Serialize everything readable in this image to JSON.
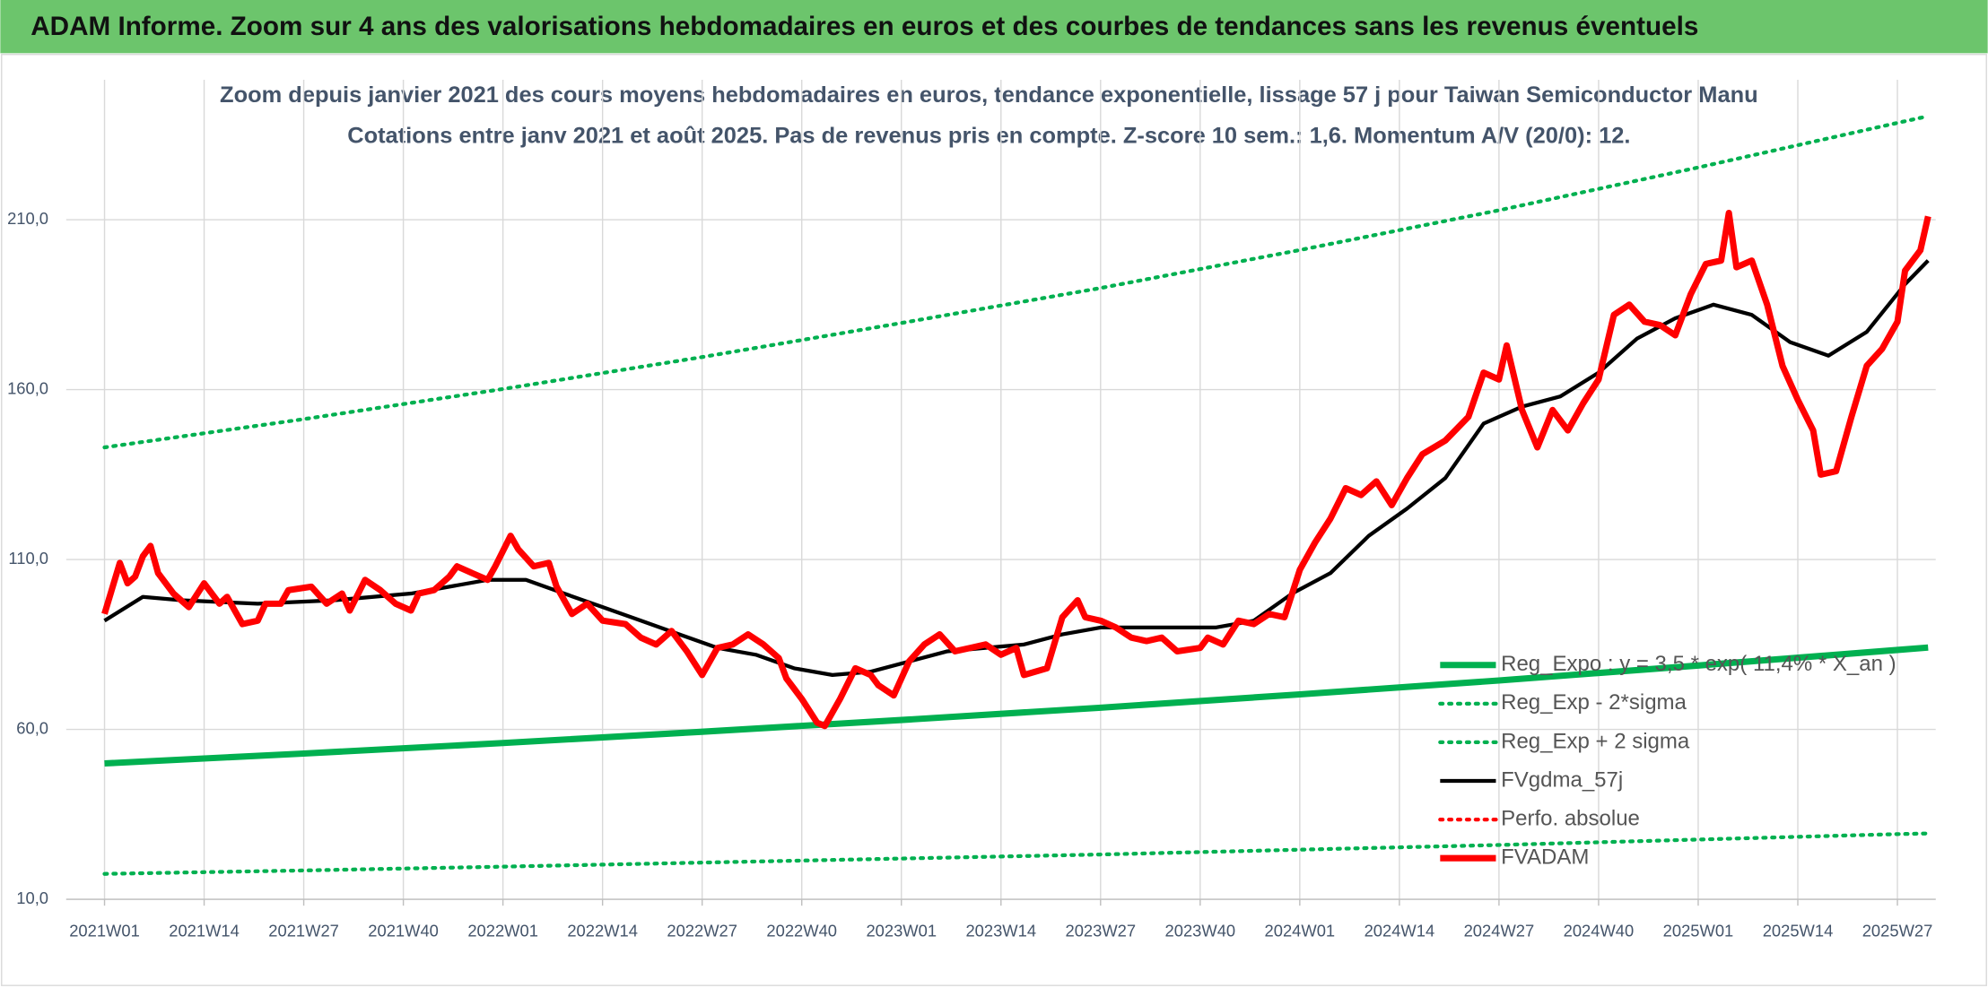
{
  "header": {
    "title": "ADAM Informe. Zoom sur 4 ans des valorisations hebdomadaires en euros et des courbes de tendances sans les revenus éventuels"
  },
  "chart_data": {
    "type": "line",
    "title": "Zoom depuis janvier 2021 des cours moyens hebdomadaires en euros, tendance exponentielle, lissage 57 j pour Taiwan Semiconductor Manu",
    "subtitle": "Cotations entre janv 2021 et août 2025. Pas de revenus pris en compte. Z-score 10 sem.: 1,6. Momentum A/V (20/0): 12.",
    "xlim": [
      -5,
      239
    ],
    "xticks": [
      {
        "value": 0,
        "label": "2021W01"
      },
      {
        "value": 13,
        "label": "2021W14"
      },
      {
        "value": 26,
        "label": "2021W27"
      },
      {
        "value": 39,
        "label": "2021W40"
      },
      {
        "value": 52,
        "label": "2022W01"
      },
      {
        "value": 65,
        "label": "2022W14"
      },
      {
        "value": 78,
        "label": "2022W27"
      },
      {
        "value": 91,
        "label": "2022W40"
      },
      {
        "value": 104,
        "label": "2023W01"
      },
      {
        "value": 117,
        "label": "2023W14"
      },
      {
        "value": 130,
        "label": "2023W27"
      },
      {
        "value": 143,
        "label": "2023W40"
      },
      {
        "value": 156,
        "label": "2024W01"
      },
      {
        "value": 169,
        "label": "2024W14"
      },
      {
        "value": 182,
        "label": "2024W27"
      },
      {
        "value": 195,
        "label": "2024W40"
      },
      {
        "value": 208,
        "label": "2025W01"
      },
      {
        "value": 221,
        "label": "2025W14"
      },
      {
        "value": 234,
        "label": "2025W27"
      }
    ],
    "ylim": [
      10,
      240
    ],
    "yticks": [
      {
        "value": 10,
        "label": "10,0"
      },
      {
        "value": 60,
        "label": "60,0"
      },
      {
        "value": 110,
        "label": "110,0"
      },
      {
        "value": 160,
        "label": "160,0"
      },
      {
        "value": 210,
        "label": "210,0"
      }
    ],
    "grid": true,
    "legend": "right",
    "series": [
      {
        "name": "Reg_Expo : y = 3,5 * exp( 11,4% * X_an )",
        "color": "#00b050",
        "line_style": "solid",
        "line_weight": "thick",
        "x": [
          0,
          26,
          52,
          78,
          104,
          130,
          156,
          182,
          208,
          234,
          238
        ],
        "values": [
          50,
          52.9,
          56,
          59.3,
          62.8,
          66.4,
          70.3,
          74.4,
          78.8,
          83.4,
          84.1
        ]
      },
      {
        "name": "Reg_Exp - 2*sigma",
        "color": "#00b050",
        "line_style": "dotted",
        "line_weight": "medium",
        "x": [
          0,
          26,
          52,
          78,
          104,
          130,
          156,
          182,
          208,
          234,
          238
        ],
        "values": [
          17.5,
          18.5,
          19.6,
          20.8,
          22.0,
          23.2,
          24.6,
          26.0,
          27.6,
          29.2,
          29.4
        ]
      },
      {
        "name": "Reg_Exp + 2 sigma",
        "color": "#00b050",
        "line_style": "dotted",
        "line_weight": "medium",
        "x": [
          0,
          26,
          52,
          78,
          104,
          130,
          156,
          182,
          208,
          234,
          238
        ],
        "values": [
          143,
          151.3,
          160.2,
          169.6,
          179.6,
          189.9,
          201.1,
          212.8,
          225.4,
          238.5,
          240.5
        ]
      },
      {
        "name": "FVgdma_57j",
        "color": "#000000",
        "line_style": "solid",
        "line_weight": "medium",
        "x": [
          0,
          5,
          10,
          20,
          30,
          40,
          50,
          55,
          60,
          65,
          70,
          75,
          80,
          85,
          90,
          95,
          100,
          105,
          110,
          115,
          120,
          125,
          130,
          135,
          140,
          145,
          150,
          155,
          160,
          165,
          170,
          175,
          180,
          185,
          190,
          195,
          200,
          205,
          210,
          215,
          220,
          225,
          230,
          235,
          238
        ],
        "values": [
          92,
          99,
          98,
          97,
          98,
          100,
          104,
          104,
          100,
          96,
          92,
          88,
          84,
          82,
          78,
          76,
          77,
          80,
          83,
          84,
          85,
          88,
          90,
          90,
          90,
          90,
          92,
          100,
          106,
          117,
          125,
          134,
          150,
          155,
          158,
          165,
          175,
          181,
          185,
          182,
          174,
          170,
          177,
          191,
          198
        ]
      },
      {
        "name": "Perfo. absolue",
        "color": "#ff0000",
        "line_style": "dotted",
        "line_weight": "medium",
        "x": [],
        "values": []
      },
      {
        "name": "FVADAM",
        "color": "#ff0000",
        "line_style": "solid",
        "line_weight": "thick",
        "x": [
          0,
          2,
          3,
          4,
          5,
          6,
          7,
          9,
          11,
          13,
          15,
          16,
          18,
          20,
          21,
          23,
          24,
          27,
          29,
          31,
          32,
          34,
          36,
          38,
          40,
          41,
          43,
          45,
          46,
          48,
          50,
          51,
          53,
          54,
          56,
          58,
          59,
          61,
          63,
          65,
          68,
          70,
          72,
          74,
          76,
          78,
          80,
          82,
          84,
          86,
          88,
          89,
          91,
          93,
          94,
          96,
          98,
          100,
          101,
          103,
          105,
          107,
          109,
          111,
          113,
          115,
          117,
          119,
          120,
          123,
          125,
          127,
          128,
          130,
          132,
          134,
          136,
          138,
          140,
          143,
          144,
          146,
          148,
          150,
          152,
          154,
          156,
          158,
          160,
          162,
          164,
          166,
          168,
          170,
          172,
          175,
          178,
          180,
          182,
          183,
          185,
          187,
          189,
          191,
          193,
          195,
          197,
          199,
          201,
          203,
          205,
          207,
          209,
          211,
          212,
          213,
          215,
          217,
          219,
          221,
          223,
          224,
          226,
          228,
          230,
          232,
          234,
          235,
          237,
          238
        ],
        "values": [
          94,
          109,
          103,
          105,
          111,
          114,
          106,
          100,
          96,
          103,
          97,
          99,
          91,
          92,
          97,
          97,
          101,
          102,
          97,
          100,
          95,
          104,
          101,
          97,
          95,
          100,
          101,
          105,
          108,
          106,
          104,
          108,
          117,
          113,
          108,
          109,
          102,
          94,
          97,
          92,
          91,
          87,
          85,
          89,
          83,
          76,
          84,
          85,
          88,
          85,
          81,
          75,
          69,
          62,
          61,
          69,
          78,
          76,
          73,
          70,
          80,
          85,
          88,
          83,
          84,
          85,
          82,
          84,
          76,
          78,
          93,
          98,
          93,
          92,
          90,
          87,
          86,
          87,
          83,
          84,
          87,
          85,
          92,
          91,
          94,
          93,
          107,
          115,
          122,
          131,
          129,
          133,
          126,
          134,
          141,
          145,
          152,
          165,
          163,
          173,
          154,
          143,
          154,
          148,
          156,
          163,
          182,
          185,
          180,
          179,
          176,
          188,
          197,
          198,
          212,
          196,
          198,
          185,
          167,
          157,
          148,
          135,
          136,
          152,
          167,
          172,
          180,
          195,
          201,
          211
        ]
      }
    ]
  }
}
